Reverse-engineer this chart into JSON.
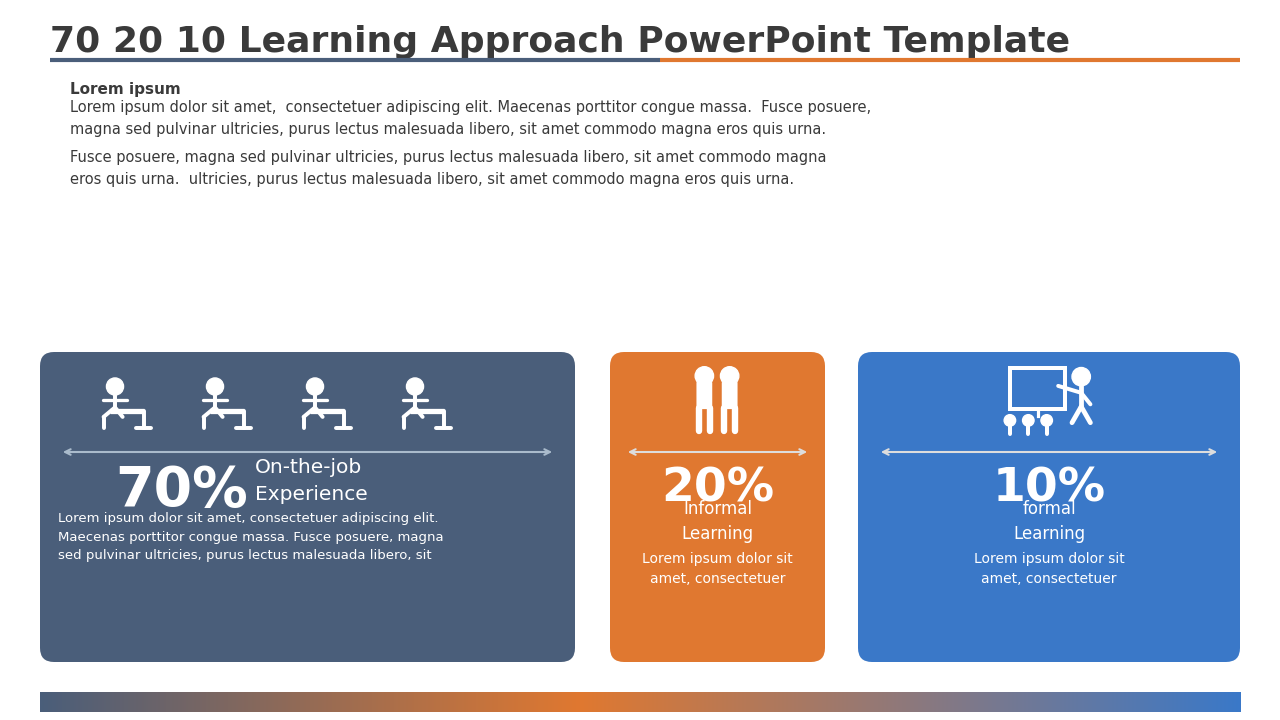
{
  "title": "70 20 10 Learning Approach PowerPoint Template",
  "title_color": "#3a3a3a",
  "title_fontsize": 26,
  "subtitle_bold": "Lorem ipsum",
  "subtitle_text1": "Lorem ipsum dolor sit amet,  consectetuer adipiscing elit. Maecenas porttitor congue massa.  Fusce posuere,\nmagna sed pulvinar ultricies, purus lectus malesuada libero, sit amet commodo magna eros quis urna.",
  "subtitle_text2": "Fusce posuere, magna sed pulvinar ultricies, purus lectus malesuada libero, sit amet commodo magna\neros quis urna.  ultricies, purus lectus malesuada libero, sit amet commodo magna eros quis urna.",
  "block1_color": "#4a5e7a",
  "block2_color": "#e07830",
  "block3_color": "#3a78c8",
  "block1_pct": "70%",
  "block1_label": "On-the-job\nExperience",
  "block1_body": "Lorem ipsum dolor sit amet, consectetuer adipiscing elit.\nMaecenas porttitor congue massa. Fusce posuere, magna\nsed pulvinar ultricies, purus lectus malesuada libero, sit",
  "block2_pct": "20%",
  "block2_label": "Informal\nLearning",
  "block2_body": "Lorem ipsum dolor sit\namet, consectetuer",
  "block3_pct": "10%",
  "block3_label": "formal\nLearning",
  "block3_body": "Lorem ipsum dolor sit\namet, consectetuer",
  "header_line_color_left": "#4a5e7a",
  "header_line_color_right": "#e07830",
  "bg_color": "#ffffff",
  "text_color_white": "#ffffff",
  "text_color_dark": "#3a3a3a",
  "arrow_color": "#aabbcc"
}
